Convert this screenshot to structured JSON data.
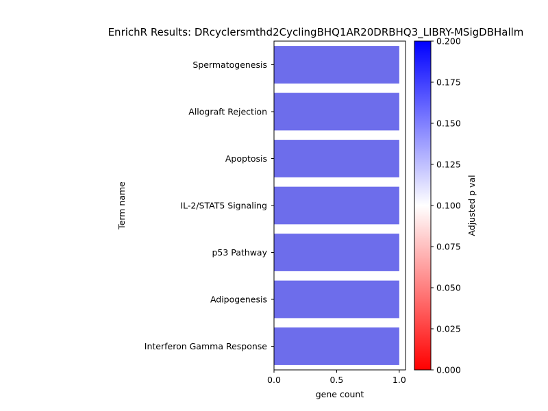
{
  "chart_data": {
    "type": "bar",
    "orientation": "horizontal",
    "title": "EnrichR Results: DRcyclersmthd2CyclingBHQ1AR20DRBHQ3_LIBRY-MSigDBHallm",
    "xlabel": "gene count",
    "ylabel": "Term name",
    "xlim": [
      0,
      1.05
    ],
    "xticks": [
      0.0,
      0.5,
      1.0
    ],
    "xtick_labels": [
      "0.0",
      "0.5",
      "1.0"
    ],
    "categories": [
      "Spermatogenesis",
      "Allograft Rejection",
      "Apoptosis",
      "IL-2/STAT5 Signaling",
      "p53 Pathway",
      "Adipogenesis",
      "Interferon Gamma Response"
    ],
    "values": [
      1,
      1,
      1,
      1,
      1,
      1,
      1
    ],
    "adjusted_p_values": [
      0.157,
      0.157,
      0.157,
      0.157,
      0.157,
      0.157,
      0.157
    ],
    "bar_color": "#6d6deb",
    "grid": false,
    "colorbar": {
      "label": "Adjusted p val",
      "range": [
        0,
        0.2
      ],
      "ticks": [
        0.0,
        0.025,
        0.05,
        0.075,
        0.1,
        0.125,
        0.15,
        0.175,
        0.2
      ],
      "tick_labels": [
        "0.000",
        "0.025",
        "0.050",
        "0.075",
        "0.100",
        "0.125",
        "0.150",
        "0.175",
        "0.200"
      ],
      "colormap": [
        "#ff0000",
        "#ffffff",
        "#0000ff"
      ]
    }
  }
}
